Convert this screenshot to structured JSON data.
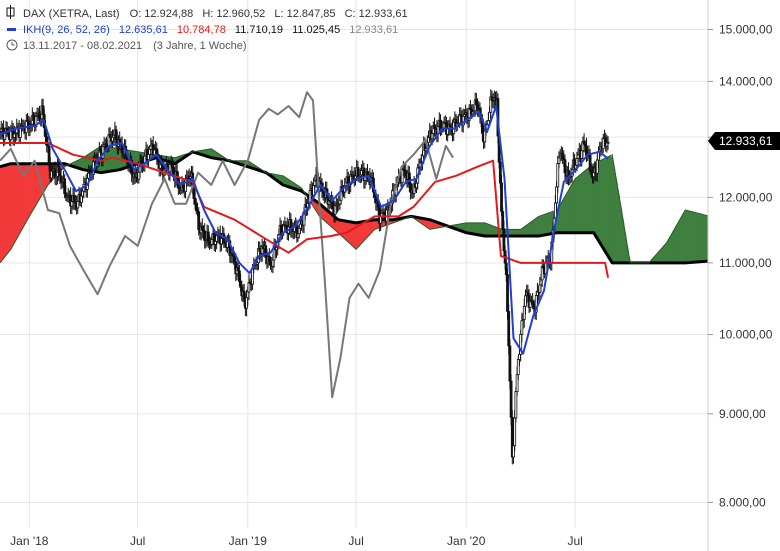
{
  "legend": {
    "row1": {
      "name": "DAX (XETRA, Last)",
      "open": "O: 12.924,88",
      "high": "H: 12.960,52",
      "low": "L: 12.847,85",
      "close": "C: 12.933,61"
    },
    "row2": {
      "name": "IKH(9, 26, 52, 26)",
      "v1": "12.635,61",
      "v2": "10.784,78",
      "v3": "11.710,19",
      "v4": "11.025,45",
      "v5": "12.933,61"
    },
    "row3": {
      "range": "13.11.2017 - 08.02.2021",
      "duration": "(3 Jahre, 1 Woche)"
    }
  },
  "last_price_label": "12.933,61",
  "colors": {
    "tenkan": "#1f3fd6",
    "kijun": "#e31a1c",
    "chikou": "#777777",
    "cloud_bull": "#3f7f3f",
    "cloud_bear": "#f23a3a",
    "candle": "#111111",
    "grid": "#e6e6e6"
  },
  "icons": {
    "series": "series-marker-icon",
    "indicator": "indicator-marker-icon",
    "clock": "clock-icon"
  },
  "chart_data": {
    "type": "line",
    "scale": "log",
    "ylim": [
      7500,
      15600
    ],
    "xlim": [
      "2017-11-13",
      "2021-02-08"
    ],
    "yticks": [
      {
        "value": 8000,
        "label": "8.000,00"
      },
      {
        "value": 9000,
        "label": "9.000,00"
      },
      {
        "value": 10000,
        "label": "10.000,00"
      },
      {
        "value": 11000,
        "label": "11.000,00"
      },
      {
        "value": 12000,
        "label": "12.000,00"
      },
      {
        "value": 13000,
        "label": "13.000,00"
      },
      {
        "value": 14000,
        "label": "14.000,00"
      },
      {
        "value": 15000,
        "label": "15.000,00"
      }
    ],
    "xticks": [
      {
        "date": "2018-01-01",
        "label": "Jan '18"
      },
      {
        "date": "2018-07-01",
        "label": "Jul"
      },
      {
        "date": "2019-01-01",
        "label": "Jan '19"
      },
      {
        "date": "2019-07-01",
        "label": "Jul"
      },
      {
        "date": "2020-01-01",
        "label": "Jan '20"
      },
      {
        "date": "2020-07-01",
        "label": "Jul"
      }
    ],
    "close": [
      [
        "2017-11-13",
        13100
      ],
      [
        "2017-12-01",
        13050
      ],
      [
        "2017-12-20",
        13150
      ],
      [
        "2018-01-10",
        13300
      ],
      [
        "2018-01-23",
        13450
      ],
      [
        "2018-02-05",
        12400
      ],
      [
        "2018-02-20",
        12400
      ],
      [
        "2018-03-05",
        12000
      ],
      [
        "2018-03-23",
        11900
      ],
      [
        "2018-04-06",
        12250
      ],
      [
        "2018-04-20",
        12550
      ],
      [
        "2018-05-04",
        12800
      ],
      [
        "2018-05-22",
        13050
      ],
      [
        "2018-06-08",
        12750
      ],
      [
        "2018-06-27",
        12300
      ],
      [
        "2018-07-10",
        12600
      ],
      [
        "2018-07-26",
        12850
      ],
      [
        "2018-08-10",
        12450
      ],
      [
        "2018-08-27",
        12500
      ],
      [
        "2018-09-12",
        12100
      ],
      [
        "2018-09-27",
        12400
      ],
      [
        "2018-10-11",
        11550
      ],
      [
        "2018-10-29",
        11300
      ],
      [
        "2018-11-14",
        11400
      ],
      [
        "2018-11-30",
        11250
      ],
      [
        "2018-12-14",
        10900
      ],
      [
        "2018-12-27",
        10400
      ],
      [
        "2019-01-10",
        10900
      ],
      [
        "2019-01-25",
        11250
      ],
      [
        "2019-02-08",
        10950
      ],
      [
        "2019-02-25",
        11500
      ],
      [
        "2019-03-12",
        11550
      ],
      [
        "2019-03-27",
        11450
      ],
      [
        "2019-04-10",
        11900
      ],
      [
        "2019-04-25",
        12300
      ],
      [
        "2019-05-10",
        12050
      ],
      [
        "2019-05-27",
        11800
      ],
      [
        "2019-06-12",
        12200
      ],
      [
        "2019-06-27",
        12350
      ],
      [
        "2019-07-10",
        12400
      ],
      [
        "2019-07-26",
        12300
      ],
      [
        "2019-08-09",
        11700
      ],
      [
        "2019-08-22",
        11750
      ],
      [
        "2019-09-06",
        12200
      ],
      [
        "2019-09-20",
        12450
      ],
      [
        "2019-10-04",
        12050
      ],
      [
        "2019-10-18",
        12650
      ],
      [
        "2019-11-04",
        13100
      ],
      [
        "2019-11-20",
        13200
      ],
      [
        "2019-12-06",
        13150
      ],
      [
        "2019-12-20",
        13300
      ],
      [
        "2020-01-10",
        13450
      ],
      [
        "2020-01-20",
        13600
      ],
      [
        "2020-01-31",
        12950
      ],
      [
        "2020-02-14",
        13750
      ],
      [
        "2020-02-21",
        13600
      ],
      [
        "2020-02-28",
        11900
      ],
      [
        "2020-03-09",
        10600
      ],
      [
        "2020-03-18",
        8450
      ],
      [
        "2020-03-27",
        9600
      ],
      [
        "2020-04-09",
        10550
      ],
      [
        "2020-04-24",
        10350
      ],
      [
        "2020-05-08",
        10900
      ],
      [
        "2020-05-22",
        11100
      ],
      [
        "2020-06-05",
        12800
      ],
      [
        "2020-06-19",
        12300
      ],
      [
        "2020-07-03",
        12600
      ],
      [
        "2020-07-17",
        12900
      ],
      [
        "2020-07-31",
        12300
      ],
      [
        "2020-08-14",
        12900
      ],
      [
        "2020-08-25",
        12933.61
      ]
    ],
    "tenkan": [
      [
        "2017-11-13",
        13050
      ],
      [
        "2017-12-10",
        13150
      ],
      [
        "2018-01-10",
        13200
      ],
      [
        "2018-01-25",
        13300
      ],
      [
        "2018-02-09",
        12800
      ],
      [
        "2018-03-01",
        12450
      ],
      [
        "2018-03-20",
        12100
      ],
      [
        "2018-04-08",
        12200
      ],
      [
        "2018-04-25",
        12600
      ],
      [
        "2018-05-15",
        12850
      ],
      [
        "2018-06-05",
        12900
      ],
      [
        "2018-06-25",
        12450
      ],
      [
        "2018-07-12",
        12550
      ],
      [
        "2018-08-01",
        12700
      ],
      [
        "2018-08-20",
        12450
      ],
      [
        "2018-09-10",
        12200
      ],
      [
        "2018-10-01",
        12300
      ],
      [
        "2018-10-20",
        11800
      ],
      [
        "2018-11-08",
        11450
      ],
      [
        "2018-11-28",
        11350
      ],
      [
        "2018-12-18",
        11000
      ],
      [
        "2019-01-04",
        10850
      ],
      [
        "2019-01-20",
        11100
      ],
      [
        "2019-02-08",
        11150
      ],
      [
        "2019-03-01",
        11450
      ],
      [
        "2019-03-22",
        11550
      ],
      [
        "2019-04-12",
        11850
      ],
      [
        "2019-05-02",
        12200
      ],
      [
        "2019-05-22",
        11950
      ],
      [
        "2019-06-10",
        12150
      ],
      [
        "2019-07-01",
        12300
      ],
      [
        "2019-07-22",
        12350
      ],
      [
        "2019-08-12",
        11850
      ],
      [
        "2019-09-02",
        11950
      ],
      [
        "2019-09-22",
        12250
      ],
      [
        "2019-10-10",
        12300
      ],
      [
        "2019-11-01",
        12850
      ],
      [
        "2019-11-22",
        13150
      ],
      [
        "2019-12-12",
        13150
      ],
      [
        "2020-01-02",
        13300
      ],
      [
        "2020-01-22",
        13450
      ],
      [
        "2020-02-05",
        13100
      ],
      [
        "2020-02-20",
        13550
      ],
      [
        "2020-03-05",
        12300
      ],
      [
        "2020-03-20",
        9950
      ],
      [
        "2020-04-05",
        9750
      ],
      [
        "2020-04-22",
        10250
      ],
      [
        "2020-05-10",
        10600
      ],
      [
        "2020-05-28",
        11550
      ],
      [
        "2020-06-12",
        12250
      ],
      [
        "2020-07-02",
        12450
      ],
      [
        "2020-07-22",
        12700
      ],
      [
        "2020-08-10",
        12750
      ],
      [
        "2020-08-25",
        12635.61
      ]
    ],
    "kijun": [
      [
        "2017-11-13",
        12900
      ],
      [
        "2018-02-01",
        12900
      ],
      [
        "2018-03-15",
        12700
      ],
      [
        "2018-05-01",
        12600
      ],
      [
        "2018-05-20",
        12650
      ],
      [
        "2018-07-01",
        12550
      ],
      [
        "2018-08-15",
        12400
      ],
      [
        "2018-10-01",
        12250
      ],
      [
        "2018-10-20",
        11850
      ],
      [
        "2018-12-10",
        11650
      ],
      [
        "2019-02-01",
        11350
      ],
      [
        "2019-03-10",
        11150
      ],
      [
        "2019-04-10",
        11350
      ],
      [
        "2019-05-20",
        11400
      ],
      [
        "2019-06-15",
        11450
      ],
      [
        "2019-08-01",
        11700
      ],
      [
        "2019-09-10",
        11700
      ],
      [
        "2019-10-05",
        11850
      ],
      [
        "2019-11-10",
        12250
      ],
      [
        "2019-12-15",
        12350
      ],
      [
        "2020-01-20",
        12500
      ],
      [
        "2020-02-15",
        12600
      ],
      [
        "2020-02-28",
        11100
      ],
      [
        "2020-04-01",
        11000
      ],
      [
        "2020-06-01",
        11000
      ],
      [
        "2020-08-20",
        11000
      ],
      [
        "2020-08-25",
        10784.78
      ]
    ],
    "chikou": [
      [
        "2017-11-13",
        12600
      ],
      [
        "2017-12-01",
        12800
      ],
      [
        "2017-12-22",
        12350
      ],
      [
        "2018-01-10",
        12600
      ],
      [
        "2018-02-01",
        11800
      ],
      [
        "2018-02-20",
        11750
      ],
      [
        "2018-03-10",
        11250
      ],
      [
        "2018-04-01",
        10900
      ],
      [
        "2018-04-25",
        10550
      ],
      [
        "2018-05-15",
        10950
      ],
      [
        "2018-06-10",
        11400
      ],
      [
        "2018-07-01",
        11250
      ],
      [
        "2018-07-25",
        11900
      ],
      [
        "2018-08-15",
        12300
      ],
      [
        "2018-09-01",
        11900
      ],
      [
        "2018-09-20",
        11900
      ],
      [
        "2018-10-10",
        12400
      ],
      [
        "2018-11-01",
        12200
      ],
      [
        "2018-11-20",
        12600
      ],
      [
        "2018-12-10",
        12200
      ],
      [
        "2019-01-01",
        12600
      ],
      [
        "2019-01-20",
        13300
      ],
      [
        "2019-02-05",
        13500
      ],
      [
        "2019-02-20",
        13400
      ],
      [
        "2019-03-10",
        13550
      ],
      [
        "2019-03-28",
        13350
      ],
      [
        "2019-04-10",
        13800
      ],
      [
        "2019-04-20",
        13650
      ],
      [
        "2019-04-30",
        12000
      ],
      [
        "2019-05-10",
        10700
      ],
      [
        "2019-05-22",
        9200
      ],
      [
        "2019-06-05",
        9700
      ],
      [
        "2019-06-20",
        10500
      ],
      [
        "2019-07-05",
        10700
      ],
      [
        "2019-07-22",
        10500
      ],
      [
        "2019-08-10",
        10900
      ],
      [
        "2019-08-28",
        11900
      ],
      [
        "2019-09-15",
        12500
      ],
      [
        "2019-10-05",
        12700
      ],
      [
        "2019-10-25",
        12950
      ],
      [
        "2019-11-12",
        12300
      ],
      [
        "2019-11-28",
        12850
      ],
      [
        "2019-12-10",
        12650
      ]
    ],
    "span_a": [
      [
        "2017-11-13",
        11000
      ],
      [
        "2017-12-01",
        11200
      ],
      [
        "2018-01-01",
        11700
      ],
      [
        "2018-02-01",
        12200
      ],
      [
        "2018-03-01",
        12500
      ],
      [
        "2018-04-01",
        12650
      ],
      [
        "2018-05-01",
        12850
      ],
      [
        "2018-06-01",
        12800
      ],
      [
        "2018-07-01",
        12750
      ],
      [
        "2018-08-01",
        12700
      ],
      [
        "2018-09-01",
        12650
      ],
      [
        "2018-10-01",
        12750
      ],
      [
        "2018-11-01",
        12800
      ],
      [
        "2018-12-01",
        12600
      ],
      [
        "2019-01-01",
        12600
      ],
      [
        "2019-02-01",
        12400
      ],
      [
        "2019-03-01",
        12350
      ],
      [
        "2019-04-01",
        12150
      ],
      [
        "2019-05-01",
        11700
      ],
      [
        "2019-06-01",
        11450
      ],
      [
        "2019-07-01",
        11200
      ],
      [
        "2019-08-01",
        11500
      ],
      [
        "2019-09-01",
        11600
      ],
      [
        "2019-10-01",
        11700
      ],
      [
        "2019-11-01",
        11500
      ],
      [
        "2019-12-01",
        11550
      ],
      [
        "2020-01-01",
        11600
      ],
      [
        "2020-02-01",
        11600
      ],
      [
        "2020-03-01",
        11500
      ],
      [
        "2020-04-01",
        11500
      ],
      [
        "2020-05-01",
        11700
      ],
      [
        "2020-06-01",
        11800
      ],
      [
        "2020-07-01",
        12300
      ],
      [
        "2020-08-01",
        12550
      ],
      [
        "2020-09-01",
        12700
      ],
      [
        "2020-10-01",
        11000
      ],
      [
        "2020-11-01",
        11000
      ],
      [
        "2020-12-01",
        11300
      ],
      [
        "2021-01-01",
        11800
      ],
      [
        "2021-02-08",
        11710.19
      ]
    ],
    "span_b": [
      [
        "2017-11-13",
        12500
      ],
      [
        "2017-12-01",
        12550
      ],
      [
        "2018-01-01",
        12550
      ],
      [
        "2018-02-01",
        12550
      ],
      [
        "2018-03-01",
        12550
      ],
      [
        "2018-04-01",
        12450
      ],
      [
        "2018-05-01",
        12400
      ],
      [
        "2018-06-01",
        12450
      ],
      [
        "2018-07-01",
        12550
      ],
      [
        "2018-08-01",
        12650
      ],
      [
        "2018-09-01",
        12550
      ],
      [
        "2018-10-01",
        12750
      ],
      [
        "2018-11-01",
        12650
      ],
      [
        "2018-12-01",
        12600
      ],
      [
        "2019-01-01",
        12500
      ],
      [
        "2019-02-01",
        12400
      ],
      [
        "2019-03-01",
        12200
      ],
      [
        "2019-04-01",
        12100
      ],
      [
        "2019-05-01",
        11900
      ],
      [
        "2019-06-01",
        11650
      ],
      [
        "2019-07-01",
        11600
      ],
      [
        "2019-08-01",
        11650
      ],
      [
        "2019-09-01",
        11650
      ],
      [
        "2019-10-01",
        11700
      ],
      [
        "2019-11-01",
        11650
      ],
      [
        "2019-12-01",
        11550
      ],
      [
        "2020-01-01",
        11450
      ],
      [
        "2020-02-01",
        11400
      ],
      [
        "2020-03-01",
        11400
      ],
      [
        "2020-04-01",
        11400
      ],
      [
        "2020-05-01",
        11400
      ],
      [
        "2020-06-01",
        11450
      ],
      [
        "2020-07-01",
        11450
      ],
      [
        "2020-08-01",
        11450
      ],
      [
        "2020-09-01",
        11000
      ],
      [
        "2020-10-01",
        11000
      ],
      [
        "2020-11-01",
        11000
      ],
      [
        "2020-12-01",
        11000
      ],
      [
        "2021-01-01",
        11000
      ],
      [
        "2021-02-08",
        11025.45
      ]
    ]
  }
}
